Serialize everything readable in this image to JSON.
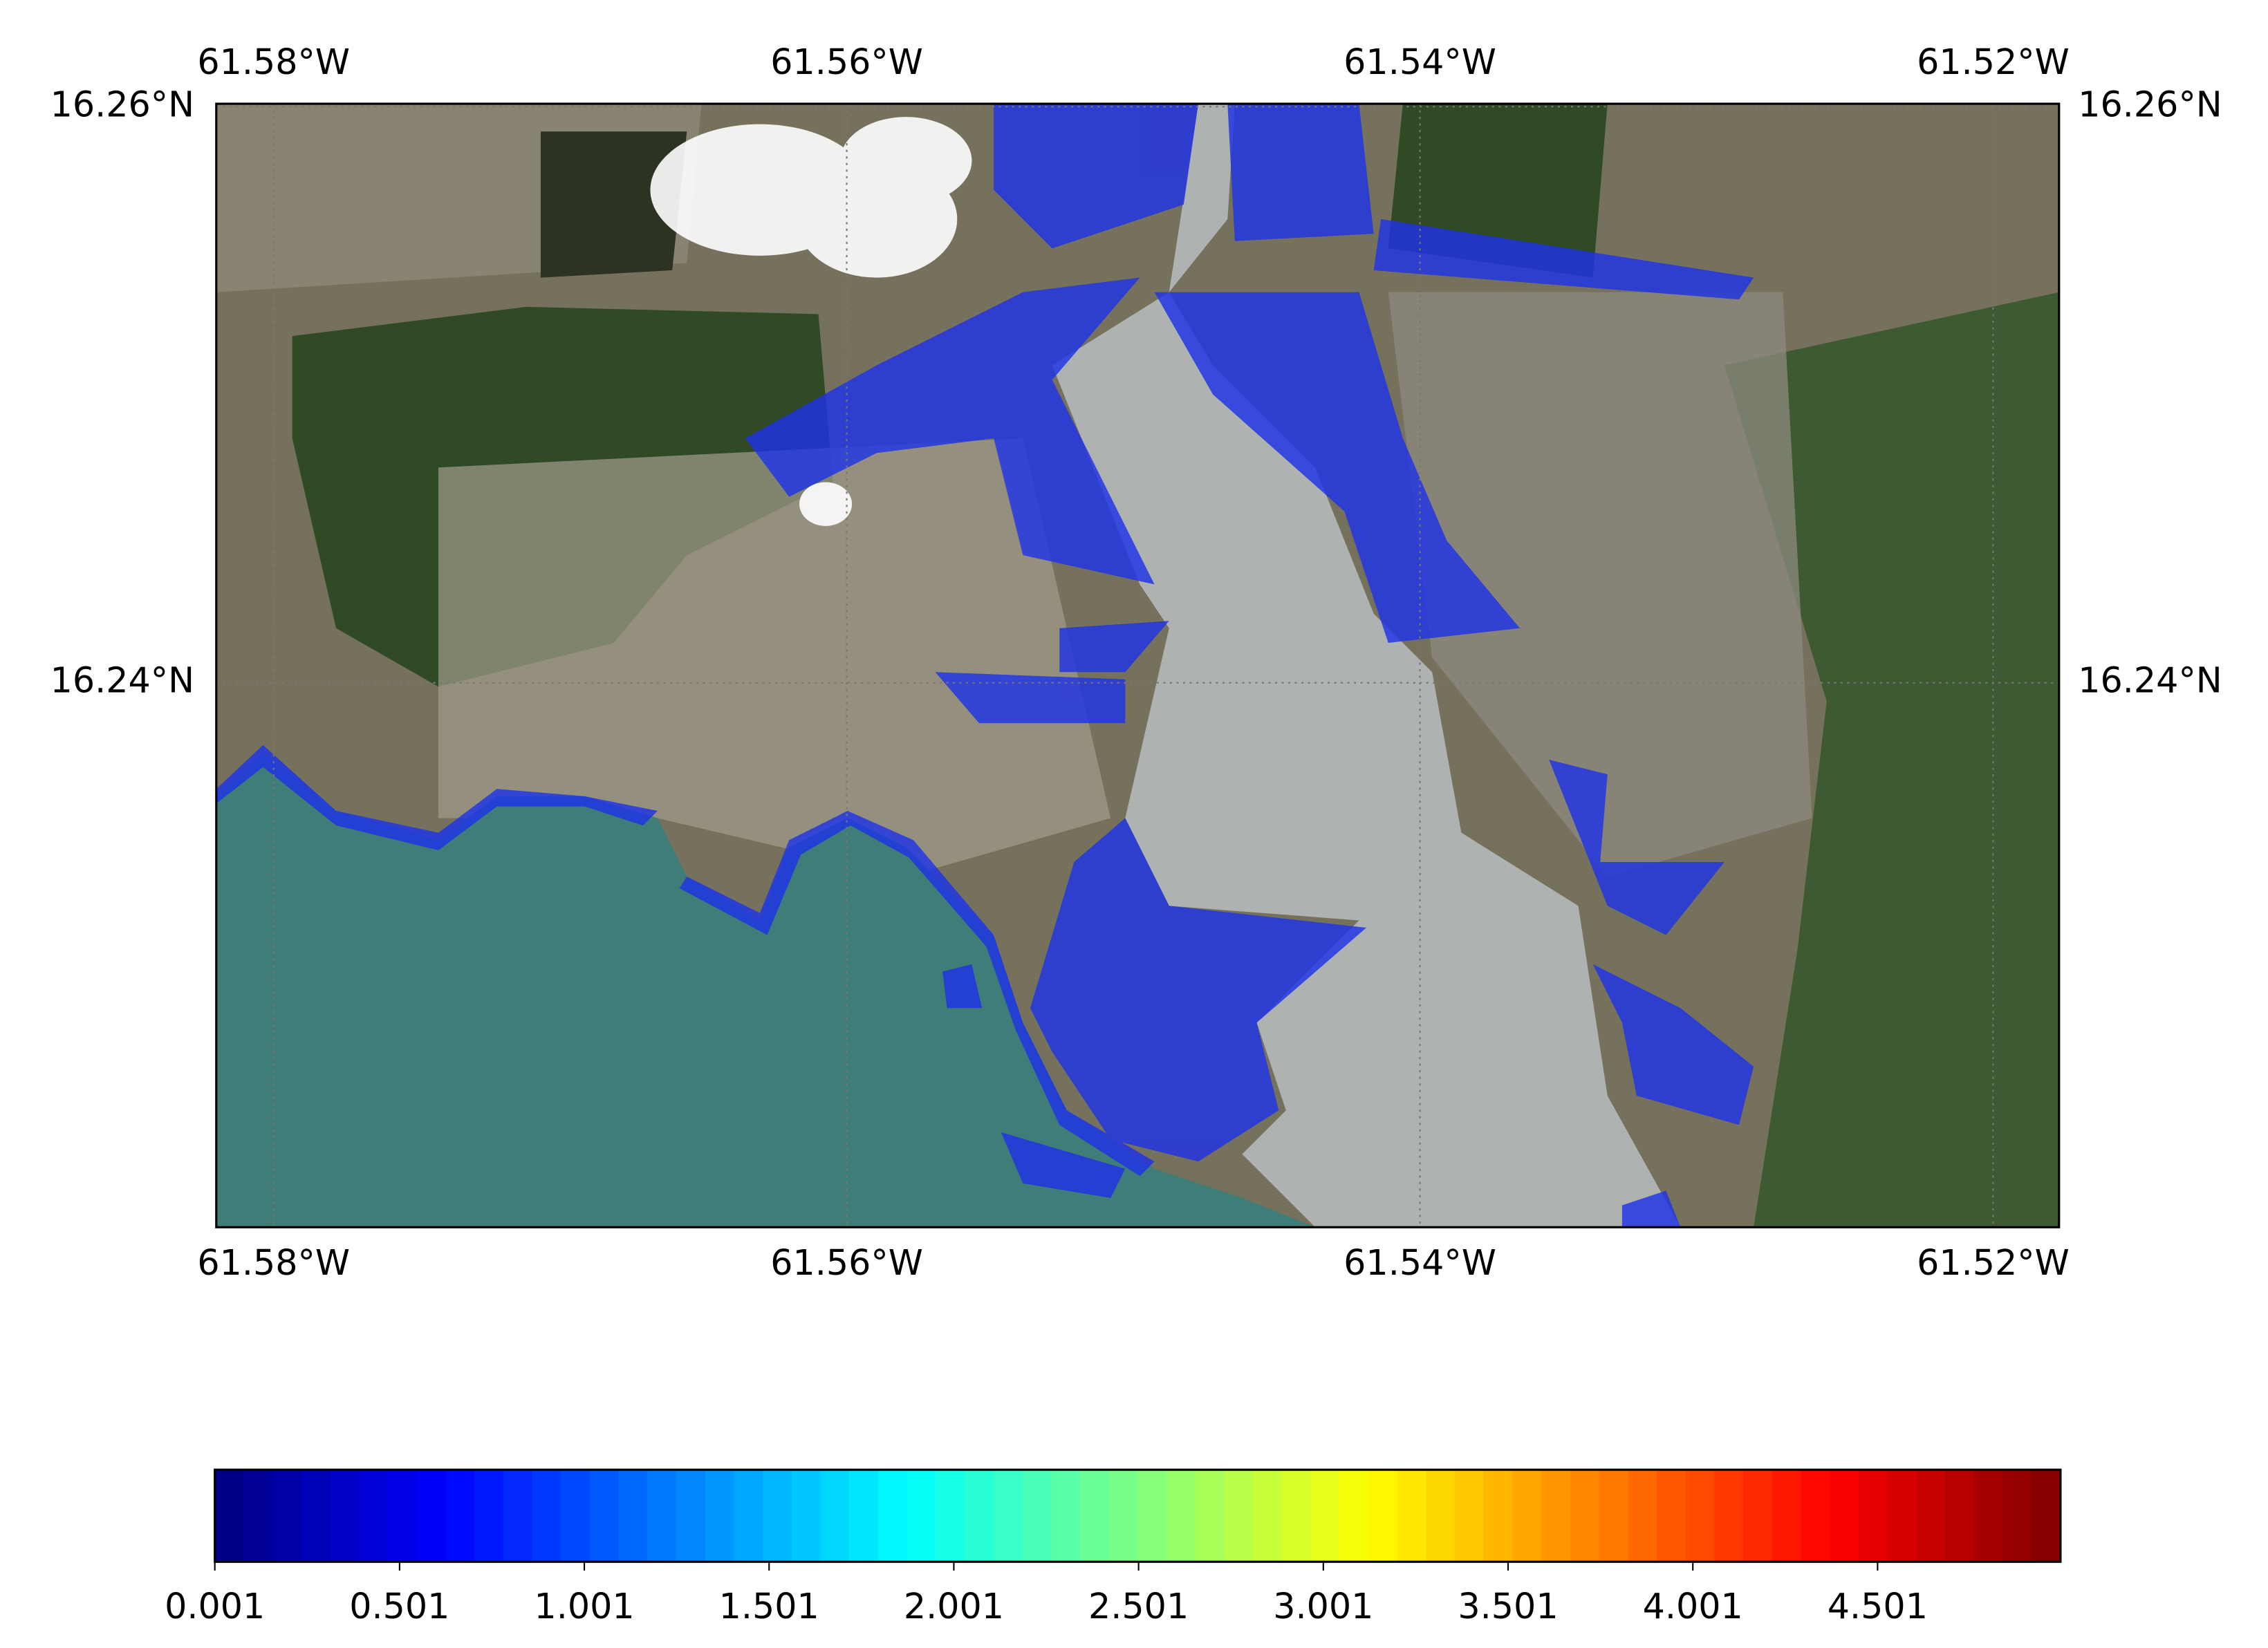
{
  "map": {
    "xlim": [
      -61.582,
      -61.5177
    ],
    "ylim": [
      16.2211,
      16.2601
    ],
    "xticks": [
      {
        "value": -61.58,
        "label": "61.58°W"
      },
      {
        "value": -61.56,
        "label": "61.56°W"
      },
      {
        "value": -61.54,
        "label": "61.54°W"
      },
      {
        "value": -61.52,
        "label": "61.52°W"
      }
    ],
    "yticks": [
      {
        "value": 16.26,
        "label": "16.26°N"
      },
      {
        "value": 16.24,
        "label": "16.24°N"
      }
    ],
    "grid": true
  },
  "colorbar": {
    "colormap": "jet",
    "clim": [
      0.001,
      4.996
    ],
    "ticks": [
      0.001,
      0.501,
      1.001,
      1.501,
      2.001,
      2.501,
      3.001,
      3.501,
      4.001,
      4.501
    ]
  }
}
